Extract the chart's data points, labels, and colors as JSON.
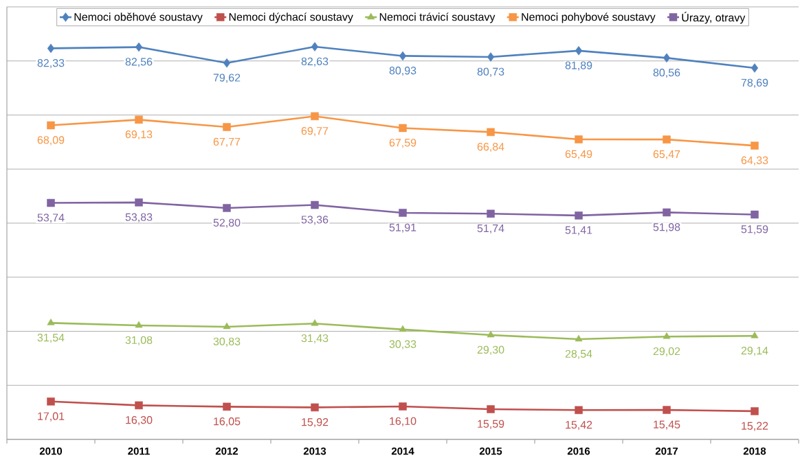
{
  "chart_data": {
    "type": "line",
    "categories": [
      "2010",
      "2011",
      "2012",
      "2013",
      "2014",
      "2015",
      "2016",
      "2017",
      "2018"
    ],
    "series": [
      {
        "name": "Nemoci oběhové soustavy",
        "color": "#4f81bd",
        "marker": "diamond",
        "values": [
          82.33,
          82.56,
          79.62,
          82.63,
          80.93,
          80.73,
          81.89,
          80.56,
          78.69
        ],
        "value_labels": [
          "82,33",
          "82,56",
          "79,62",
          "82,63",
          "80,93",
          "80,73",
          "81,89",
          "80,56",
          "78,69"
        ]
      },
      {
        "name": "Nemoci dýchací soustavy",
        "color": "#c0504d",
        "marker": "square",
        "values": [
          17.01,
          16.3,
          16.05,
          15.92,
          16.1,
          15.59,
          15.42,
          15.45,
          15.22
        ],
        "value_labels": [
          "17,01",
          "16,30",
          "16,05",
          "15,92",
          "16,10",
          "15,59",
          "15,42",
          "15,45",
          "15,22"
        ]
      },
      {
        "name": "Nemoci trávicí soustavy",
        "color": "#9bbb59",
        "marker": "triangle",
        "values": [
          31.54,
          31.08,
          30.83,
          31.43,
          30.33,
          29.3,
          28.54,
          29.02,
          29.14
        ],
        "value_labels": [
          "31,54",
          "31,08",
          "30,83",
          "31,43",
          "30,33",
          "29,30",
          "28,54",
          "29,02",
          "29,14"
        ]
      },
      {
        "name": "Nemoci pohybové soustavy",
        "color": "#f79646",
        "marker": "square",
        "values": [
          68.09,
          69.13,
          67.77,
          69.77,
          67.59,
          66.84,
          65.49,
          65.47,
          64.33
        ],
        "value_labels": [
          "68,09",
          "69,13",
          "67,77",
          "69,77",
          "67,59",
          "66,84",
          "65,49",
          "65,47",
          "64,33"
        ]
      },
      {
        "name": "Úrazy, otravy",
        "color": "#8064a2",
        "marker": "square",
        "values": [
          53.74,
          53.83,
          52.8,
          53.36,
          51.91,
          51.74,
          51.41,
          51.98,
          51.59
        ],
        "value_labels": [
          "53,74",
          "53,83",
          "52,80",
          "53,36",
          "51,91",
          "51,74",
          "51,41",
          "51,98",
          "51,59"
        ]
      }
    ],
    "ylim": [
      10,
      90
    ],
    "yticks": [
      10,
      20,
      30,
      40,
      50,
      60,
      70,
      80,
      90
    ],
    "grid": "y",
    "legend": "top",
    "tick_labels": "x",
    "line_style": "solid"
  }
}
